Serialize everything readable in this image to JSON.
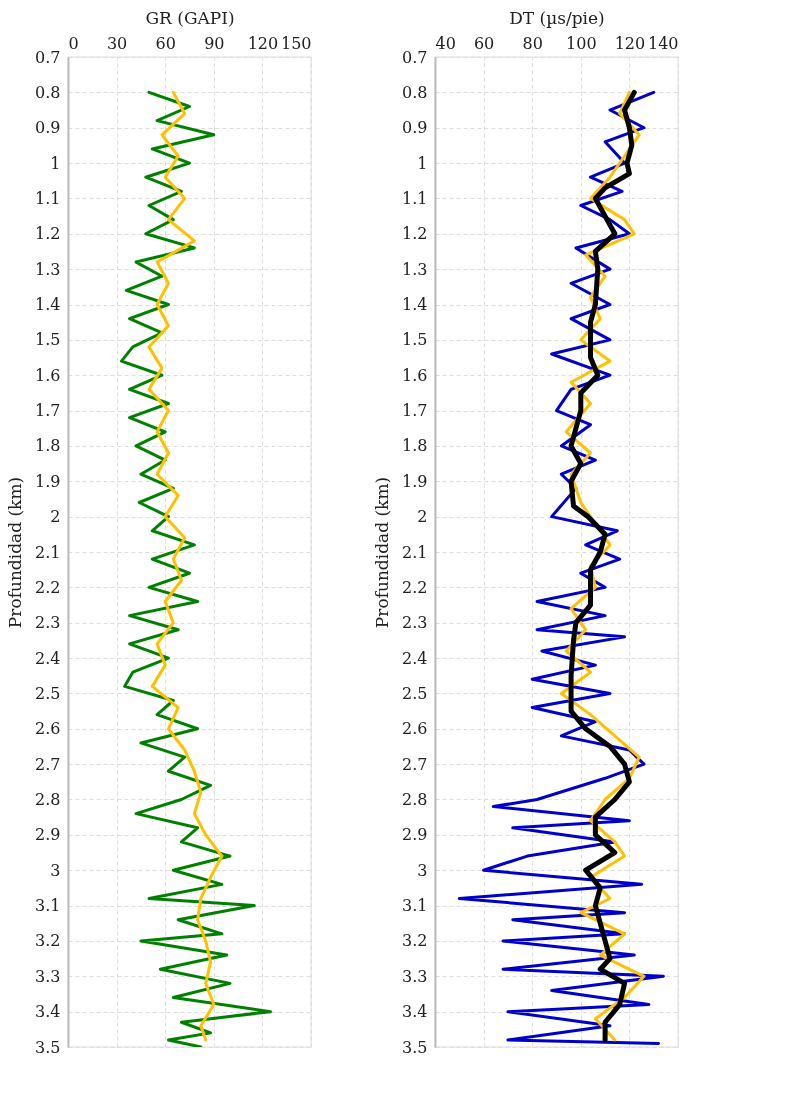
{
  "chart_data": [
    {
      "type": "line",
      "xlabel": "GR (GAPI)",
      "ylabel": "Profundidad (km)",
      "xlim": [
        0,
        150
      ],
      "xticks": [
        0,
        30,
        60,
        90,
        120,
        150
      ],
      "ylim": [
        3.5,
        0.7
      ],
      "yticks": [
        0.7,
        0.8,
        0.9,
        1,
        1.1,
        1.2,
        1.3,
        1.4,
        1.5,
        1.6,
        1.7,
        1.8,
        1.9,
        2,
        2.1,
        2.2,
        2.3,
        2.4,
        2.5,
        2.6,
        2.7,
        2.8,
        2.9,
        3,
        3.1,
        3.2,
        3.3,
        3.4,
        3.5
      ],
      "grid": true,
      "line_style": "solid",
      "marker": "none",
      "series": [
        {
          "color": "#008000",
          "x": [
            50,
            75,
            55,
            90,
            52,
            75,
            48,
            70,
            50,
            65,
            48,
            78,
            42,
            58,
            36,
            62,
            38,
            58,
            40,
            33,
            58,
            38,
            62,
            38,
            60,
            42,
            60,
            45,
            65,
            44,
            62,
            52,
            78,
            52,
            75,
            50,
            80,
            38,
            68,
            38,
            62,
            40,
            35,
            65,
            55,
            80,
            45,
            72,
            62,
            88,
            70,
            42,
            80,
            70,
            100,
            65,
            95,
            50,
            115,
            68,
            95,
            45,
            98,
            57,
            100,
            65,
            125,
            70,
            88,
            62,
            82
          ],
          "values": [
            0.8,
            0.84,
            0.88,
            0.92,
            0.96,
            1.0,
            1.04,
            1.08,
            1.12,
            1.16,
            1.2,
            1.24,
            1.28,
            1.32,
            1.36,
            1.4,
            1.44,
            1.48,
            1.52,
            1.56,
            1.6,
            1.64,
            1.68,
            1.72,
            1.76,
            1.8,
            1.84,
            1.88,
            1.92,
            1.96,
            2.0,
            2.04,
            2.08,
            2.12,
            2.16,
            2.2,
            2.24,
            2.28,
            2.32,
            2.36,
            2.4,
            2.44,
            2.48,
            2.52,
            2.56,
            2.6,
            2.64,
            2.68,
            2.72,
            2.76,
            2.8,
            2.84,
            2.88,
            2.92,
            2.96,
            3.0,
            3.04,
            3.08,
            3.1,
            3.14,
            3.18,
            3.2,
            3.24,
            3.28,
            3.32,
            3.36,
            3.4,
            3.43,
            3.46,
            3.48,
            3.5
          ]
        },
        {
          "color": "#ffc000",
          "x": [
            65,
            72,
            58,
            68,
            60,
            72,
            62,
            78,
            55,
            62,
            55,
            62,
            50,
            58,
            50,
            62,
            55,
            62,
            55,
            68,
            60,
            72,
            65,
            70,
            60,
            65,
            55,
            60,
            52,
            68,
            62,
            72,
            78,
            82,
            78,
            85,
            95,
            88,
            82,
            80,
            85,
            88,
            85,
            90,
            82,
            85
          ],
          "values": [
            0.8,
            0.86,
            0.92,
            0.98,
            1.04,
            1.1,
            1.16,
            1.22,
            1.28,
            1.34,
            1.4,
            1.46,
            1.52,
            1.58,
            1.64,
            1.7,
            1.76,
            1.82,
            1.88,
            1.94,
            2.0,
            2.06,
            2.12,
            2.18,
            2.24,
            2.3,
            2.36,
            2.42,
            2.48,
            2.54,
            2.6,
            2.66,
            2.72,
            2.78,
            2.84,
            2.9,
            2.96,
            3.02,
            3.08,
            3.14,
            3.2,
            3.26,
            3.32,
            3.38,
            3.44,
            3.48
          ]
        }
      ]
    },
    {
      "type": "line",
      "xlabel": "DT (µs/pie)",
      "ylabel": "Profundidad (km)",
      "xlim": [
        40,
        140
      ],
      "xticks": [
        40,
        60,
        80,
        100,
        120,
        140
      ],
      "ylim": [
        3.5,
        0.7
      ],
      "yticks": [
        0.7,
        0.8,
        0.9,
        1,
        1.1,
        1.2,
        1.3,
        1.4,
        1.5,
        1.6,
        1.7,
        1.8,
        1.9,
        2,
        2.1,
        2.2,
        2.3,
        2.4,
        2.5,
        2.6,
        2.7,
        2.8,
        2.9,
        3,
        3.1,
        3.2,
        3.3,
        3.4,
        3.5
      ],
      "grid": true,
      "line_style": "solid",
      "marker": "none",
      "series": [
        {
          "color": "#0000cc",
          "x": [
            130,
            112,
            126,
            110,
            118,
            104,
            117,
            100,
            112,
            120,
            98,
            112,
            96,
            112,
            96,
            112,
            88,
            112,
            96,
            90,
            104,
            92,
            106,
            92,
            98,
            88,
            115,
            102,
            116,
            100,
            110,
            82,
            110,
            82,
            118,
            84,
            106,
            80,
            112,
            80,
            106,
            92,
            120,
            126,
            110,
            82,
            64,
            120,
            72,
            114,
            78,
            60,
            125,
            50,
            118,
            72,
            118,
            68,
            122,
            68,
            134,
            88,
            128,
            70,
            112,
            70,
            132
          ],
          "values": [
            0.8,
            0.85,
            0.9,
            0.94,
            1.0,
            1.04,
            1.08,
            1.12,
            1.16,
            1.2,
            1.24,
            1.3,
            1.34,
            1.4,
            1.44,
            1.5,
            1.54,
            1.6,
            1.64,
            1.7,
            1.74,
            1.8,
            1.84,
            1.88,
            1.92,
            2.0,
            2.04,
            2.08,
            2.12,
            2.16,
            2.2,
            2.24,
            2.28,
            2.32,
            2.34,
            2.38,
            2.42,
            2.46,
            2.5,
            2.54,
            2.58,
            2.62,
            2.66,
            2.7,
            2.74,
            2.8,
            2.82,
            2.86,
            2.88,
            2.92,
            2.96,
            3.0,
            3.04,
            3.08,
            3.12,
            3.14,
            3.18,
            3.2,
            3.24,
            3.28,
            3.3,
            3.34,
            3.38,
            3.4,
            3.44,
            3.48,
            3.49
          ]
        },
        {
          "color": "#ffc000",
          "x": [
            120,
            116,
            124,
            118,
            112,
            104,
            118,
            122,
            102,
            110,
            104,
            108,
            100,
            112,
            96,
            104,
            94,
            104,
            96,
            100,
            106,
            112,
            104,
            106,
            96,
            102,
            94,
            104,
            92,
            104,
            114,
            124,
            120,
            110,
            104,
            114,
            118,
            104,
            112,
            100,
            118,
            108,
            126,
            118,
            106,
            114
          ],
          "values": [
            0.8,
            0.86,
            0.92,
            0.98,
            1.04,
            1.1,
            1.16,
            1.2,
            1.26,
            1.32,
            1.38,
            1.44,
            1.5,
            1.56,
            1.62,
            1.68,
            1.76,
            1.82,
            1.88,
            1.96,
            2.02,
            2.08,
            2.14,
            2.2,
            2.26,
            2.32,
            2.38,
            2.44,
            2.5,
            2.56,
            2.62,
            2.68,
            2.74,
            2.8,
            2.86,
            2.92,
            2.96,
            3.02,
            3.08,
            3.12,
            3.18,
            3.24,
            3.3,
            3.36,
            3.42,
            3.48
          ]
        },
        {
          "color": "#000000",
          "x": [
            122,
            118,
            120,
            121,
            119,
            120,
            110,
            106,
            110,
            114,
            106,
            107,
            106,
            104,
            104,
            104,
            107,
            100,
            100,
            96,
            100,
            96,
            97,
            103,
            110,
            108,
            104,
            104,
            98,
            97,
            96,
            96,
            102,
            112,
            118,
            120,
            114,
            106,
            106,
            114,
            102,
            108,
            106,
            108,
            110,
            112,
            108,
            118,
            116,
            110,
            110
          ],
          "values": [
            0.8,
            0.85,
            0.9,
            0.95,
            1.0,
            1.03,
            1.07,
            1.1,
            1.15,
            1.2,
            1.25,
            1.3,
            1.4,
            1.45,
            1.5,
            1.55,
            1.6,
            1.65,
            1.7,
            1.8,
            1.85,
            1.9,
            1.97,
            2.0,
            2.05,
            2.1,
            2.15,
            2.25,
            2.3,
            2.35,
            2.45,
            2.55,
            2.6,
            2.65,
            2.7,
            2.75,
            2.8,
            2.85,
            2.9,
            2.95,
            3.0,
            3.05,
            3.1,
            3.15,
            3.2,
            3.25,
            3.28,
            3.32,
            3.38,
            3.43,
            3.48
          ]
        }
      ]
    }
  ]
}
